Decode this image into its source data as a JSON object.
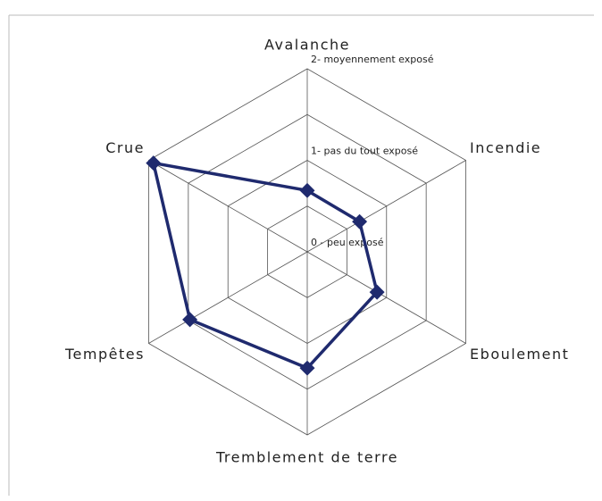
{
  "chart_data": {
    "type": "radar",
    "categories": [
      "Avalanche",
      "Incendie",
      "Eboulement",
      "Tremblement de terre",
      "Tempêtes",
      "Crue"
    ],
    "series": [
      {
        "color": "#1f2a6e",
        "values": [
          0.67,
          0.66,
          0.88,
          1.27,
          1.48,
          1.94
        ]
      }
    ],
    "ylim": [
      0,
      2
    ],
    "yticks": [
      {
        "value": 0,
        "label": "0 - peu exposé"
      },
      {
        "value": 1,
        "label": "1- pas du tout exposé"
      },
      {
        "value": 2,
        "label": "2- moyennement exposé"
      }
    ],
    "minor_ticks": [
      0.5,
      1.5
    ]
  }
}
